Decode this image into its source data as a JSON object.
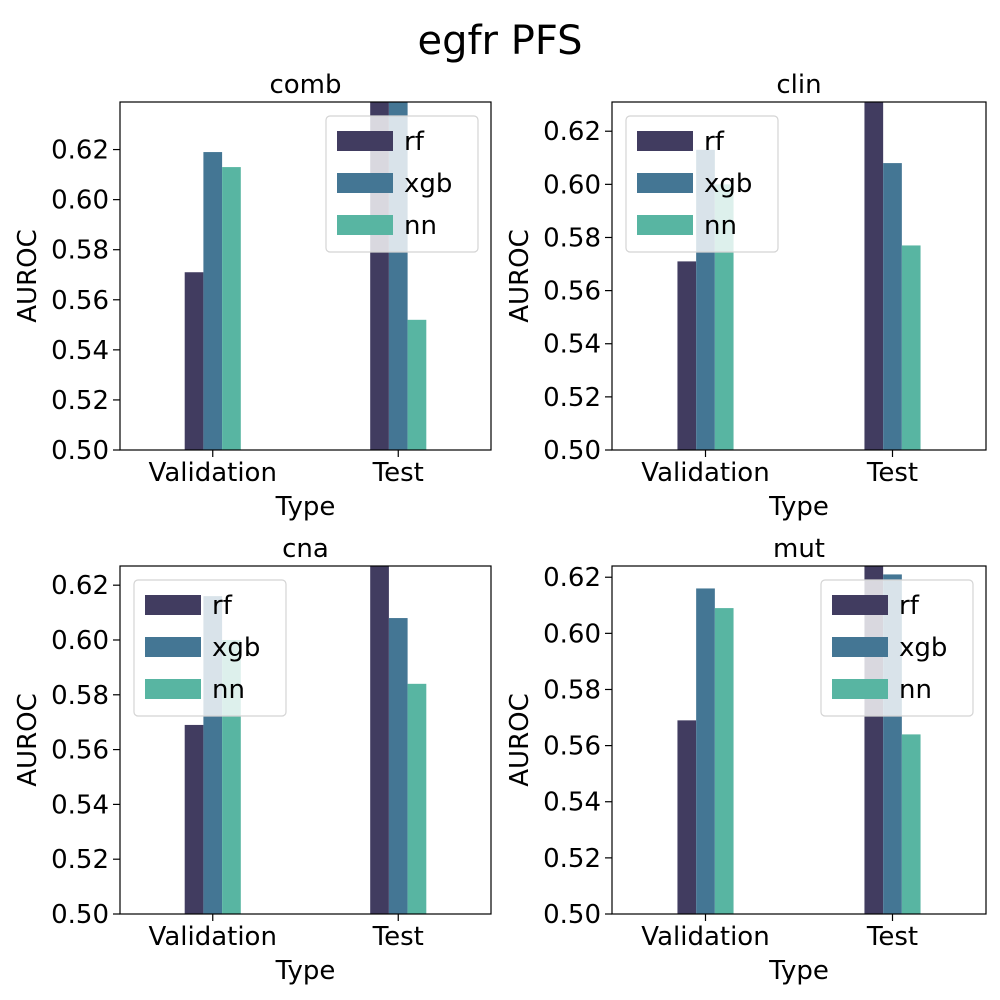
{
  "figure": {
    "title": "egfr PFS"
  },
  "chart_data": [
    {
      "type": "bar",
      "title": "comb",
      "xlabel": "Type",
      "ylabel": "AUROC",
      "categories": [
        "Validation",
        "Test"
      ],
      "ylim": [
        0.5,
        0.639
      ],
      "yticks": [
        0.5,
        0.52,
        0.54,
        0.56,
        0.58,
        0.6,
        0.62
      ],
      "ytick_labels": [
        "0.50",
        "0.52",
        "0.54",
        "0.56",
        "0.58",
        "0.60",
        "0.62"
      ],
      "legend_position": "top-right",
      "series": [
        {
          "name": "rf",
          "values": [
            0.571,
            0.639
          ]
        },
        {
          "name": "xgb",
          "values": [
            0.619,
            0.639
          ]
        },
        {
          "name": "nn",
          "values": [
            0.613,
            0.552
          ]
        }
      ]
    },
    {
      "type": "bar",
      "title": "clin",
      "xlabel": "Type",
      "ylabel": "AUROC",
      "categories": [
        "Validation",
        "Test"
      ],
      "ylim": [
        0.5,
        0.631
      ],
      "yticks": [
        0.5,
        0.52,
        0.54,
        0.56,
        0.58,
        0.6,
        0.62
      ],
      "ytick_labels": [
        "0.50",
        "0.52",
        "0.54",
        "0.56",
        "0.58",
        "0.60",
        "0.62"
      ],
      "legend_position": "top-left",
      "series": [
        {
          "name": "rf",
          "values": [
            0.571,
            0.631
          ]
        },
        {
          "name": "xgb",
          "values": [
            0.613,
            0.608
          ]
        },
        {
          "name": "nn",
          "values": [
            0.6,
            0.577
          ]
        }
      ]
    },
    {
      "type": "bar",
      "title": "cna",
      "xlabel": "Type",
      "ylabel": "AUROC",
      "categories": [
        "Validation",
        "Test"
      ],
      "ylim": [
        0.5,
        0.627
      ],
      "yticks": [
        0.5,
        0.52,
        0.54,
        0.56,
        0.58,
        0.6,
        0.62
      ],
      "ytick_labels": [
        "0.50",
        "0.52",
        "0.54",
        "0.56",
        "0.58",
        "0.60",
        "0.62"
      ],
      "legend_position": "top-left",
      "series": [
        {
          "name": "rf",
          "values": [
            0.569,
            0.627
          ]
        },
        {
          "name": "xgb",
          "values": [
            0.616,
            0.608
          ]
        },
        {
          "name": "nn",
          "values": [
            0.6,
            0.584
          ]
        }
      ]
    },
    {
      "type": "bar",
      "title": "mut",
      "xlabel": "Type",
      "ylabel": "AUROC",
      "categories": [
        "Validation",
        "Test"
      ],
      "ylim": [
        0.5,
        0.624
      ],
      "yticks": [
        0.5,
        0.52,
        0.54,
        0.56,
        0.58,
        0.6,
        0.62
      ],
      "ytick_labels": [
        "0.50",
        "0.52",
        "0.54",
        "0.56",
        "0.58",
        "0.60",
        "0.62"
      ],
      "legend_position": "top-right",
      "series": [
        {
          "name": "rf",
          "values": [
            0.569,
            0.624
          ]
        },
        {
          "name": "xgb",
          "values": [
            0.616,
            0.621
          ]
        },
        {
          "name": "nn",
          "values": [
            0.609,
            0.564
          ]
        }
      ]
    }
  ],
  "colors": {
    "rf": "#413c60",
    "xgb": "#447694",
    "nn": "#58b5a2"
  }
}
